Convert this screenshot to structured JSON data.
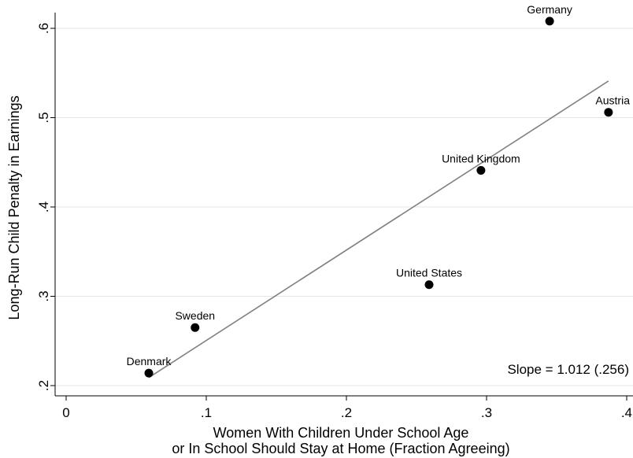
{
  "chart_data": {
    "type": "scatter",
    "title": "",
    "xlabel_lines": [
      "Women With Children Under School Age",
      "or In School Should Stay at Home (Fraction Agreeing)"
    ],
    "ylabel": "Long-Run Child Penalty in Earnings",
    "xlim": [
      0,
      0.4
    ],
    "ylim": [
      0.2,
      0.6
    ],
    "xticks": [
      0,
      0.1,
      0.2,
      0.3,
      0.4
    ],
    "xtick_labels": [
      "0",
      ".1",
      ".2",
      ".3",
      ".4"
    ],
    "yticks": [
      0.2,
      0.3,
      0.4,
      0.5,
      0.6
    ],
    "ytick_labels": [
      ".2",
      ".3",
      ".4",
      ".5",
      ".6"
    ],
    "grid": "horizontal",
    "points": [
      {
        "label": "Germany",
        "x": 0.345,
        "y": 0.608
      },
      {
        "label": "Austria",
        "x": 0.387,
        "y": 0.506
      },
      {
        "label": "United Kingdom",
        "x": 0.296,
        "y": 0.441
      },
      {
        "label": "United States",
        "x": 0.259,
        "y": 0.313
      },
      {
        "label": "Sweden",
        "x": 0.092,
        "y": 0.265
      },
      {
        "label": "Denmark",
        "x": 0.059,
        "y": 0.214
      }
    ],
    "fit_line": {
      "x": [
        0.059,
        0.387
      ],
      "y": [
        0.209,
        0.541
      ]
    },
    "annotation": "Slope = 1.012 (.256)",
    "colors": {
      "points": "#000000",
      "fit_line": "#808080",
      "grid": "#e6e6e6",
      "axis": "#000000"
    }
  }
}
